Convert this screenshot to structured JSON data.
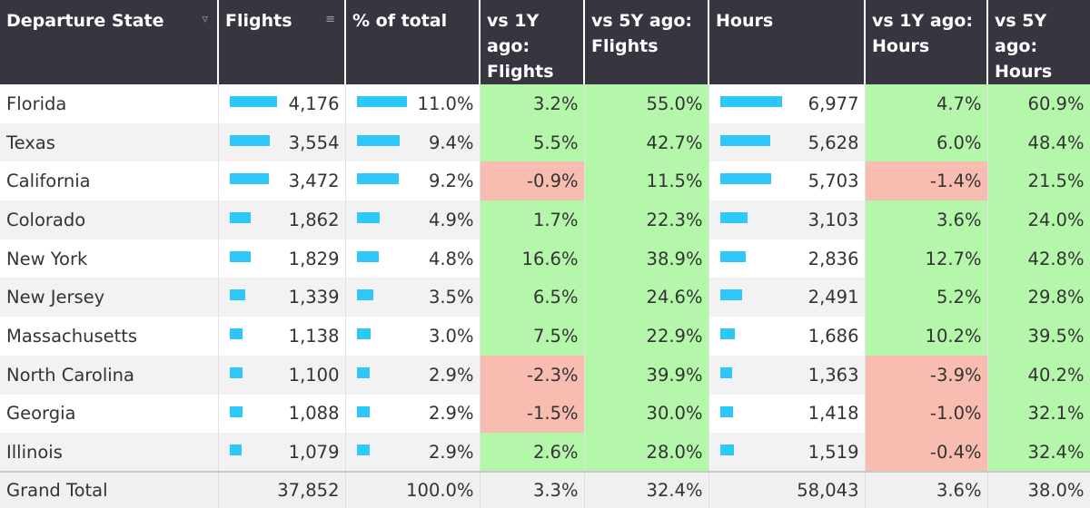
{
  "headers": {
    "state": "Departure State",
    "flights": "Flights",
    "pct_total": "% of total",
    "vs1y_flights": "vs 1Y ago: Flights",
    "vs5y_flights": "vs 5Y ago: Flights",
    "hours": "Hours",
    "vs1y_hours": "vs 1Y ago: Hours",
    "vs5y_hours": "vs 5Y ago: Hours"
  },
  "icons": {
    "sort": "sort-filter-icon",
    "sort_desc": "sort-descending-icon"
  },
  "colors": {
    "header_bg": "#363641",
    "bar": "#2ec7f9",
    "positive": "#b4f7ab",
    "negative": "#f9bcb0"
  },
  "bar_max": {
    "flights": 4176,
    "pct": 11.0,
    "hours": 6977
  },
  "rows": [
    {
      "state": "Florida",
      "flights": "4,176",
      "flights_value": 4176,
      "pct": "11.0%",
      "pct_value": 11.0,
      "vs1y_flights": "3.2%",
      "vs5y_flights": "55.0%",
      "hours": "6,977",
      "hours_value": 6977,
      "vs1y_hours": "4.7%",
      "vs5y_hours": "60.9%"
    },
    {
      "state": "Texas",
      "flights": "3,554",
      "flights_value": 3554,
      "pct": "9.4%",
      "pct_value": 9.4,
      "vs1y_flights": "5.5%",
      "vs5y_flights": "42.7%",
      "hours": "5,628",
      "hours_value": 5628,
      "vs1y_hours": "6.0%",
      "vs5y_hours": "48.4%"
    },
    {
      "state": "California",
      "flights": "3,472",
      "flights_value": 3472,
      "pct": "9.2%",
      "pct_value": 9.2,
      "vs1y_flights": "-0.9%",
      "vs5y_flights": "11.5%",
      "hours": "5,703",
      "hours_value": 5703,
      "vs1y_hours": "-1.4%",
      "vs5y_hours": "21.5%"
    },
    {
      "state": "Colorado",
      "flights": "1,862",
      "flights_value": 1862,
      "pct": "4.9%",
      "pct_value": 4.9,
      "vs1y_flights": "1.7%",
      "vs5y_flights": "22.3%",
      "hours": "3,103",
      "hours_value": 3103,
      "vs1y_hours": "3.6%",
      "vs5y_hours": "24.0%"
    },
    {
      "state": "New York",
      "flights": "1,829",
      "flights_value": 1829,
      "pct": "4.8%",
      "pct_value": 4.8,
      "vs1y_flights": "16.6%",
      "vs5y_flights": "38.9%",
      "hours": "2,836",
      "hours_value": 2836,
      "vs1y_hours": "12.7%",
      "vs5y_hours": "42.8%"
    },
    {
      "state": "New Jersey",
      "flights": "1,339",
      "flights_value": 1339,
      "pct": "3.5%",
      "pct_value": 3.5,
      "vs1y_flights": "6.5%",
      "vs5y_flights": "24.6%",
      "hours": "2,491",
      "hours_value": 2491,
      "vs1y_hours": "5.2%",
      "vs5y_hours": "29.8%"
    },
    {
      "state": "Massachusetts",
      "flights": "1,138",
      "flights_value": 1138,
      "pct": "3.0%",
      "pct_value": 3.0,
      "vs1y_flights": "7.5%",
      "vs5y_flights": "22.9%",
      "hours": "1,686",
      "hours_value": 1686,
      "vs1y_hours": "10.2%",
      "vs5y_hours": "39.5%"
    },
    {
      "state": "North Carolina",
      "flights": "1,100",
      "flights_value": 1100,
      "pct": "2.9%",
      "pct_value": 2.9,
      "vs1y_flights": "-2.3%",
      "vs5y_flights": "39.9%",
      "hours": "1,363",
      "hours_value": 1363,
      "vs1y_hours": "-3.9%",
      "vs5y_hours": "40.2%"
    },
    {
      "state": "Georgia",
      "flights": "1,088",
      "flights_value": 1088,
      "pct": "2.9%",
      "pct_value": 2.9,
      "vs1y_flights": "-1.5%",
      "vs5y_flights": "30.0%",
      "hours": "1,418",
      "hours_value": 1418,
      "vs1y_hours": "-1.0%",
      "vs5y_hours": "32.1%"
    },
    {
      "state": "Illinois",
      "flights": "1,079",
      "flights_value": 1079,
      "pct": "2.9%",
      "pct_value": 2.9,
      "vs1y_flights": "2.6%",
      "vs5y_flights": "28.0%",
      "hours": "1,519",
      "hours_value": 1519,
      "vs1y_hours": "-0.4%",
      "vs5y_hours": "32.4%"
    }
  ],
  "total": {
    "state": "Grand Total",
    "flights": "37,852",
    "pct": "100.0%",
    "vs1y_flights": "3.3%",
    "vs5y_flights": "32.4%",
    "hours": "58,043",
    "vs1y_hours": "3.6%",
    "vs5y_hours": "38.0%"
  }
}
